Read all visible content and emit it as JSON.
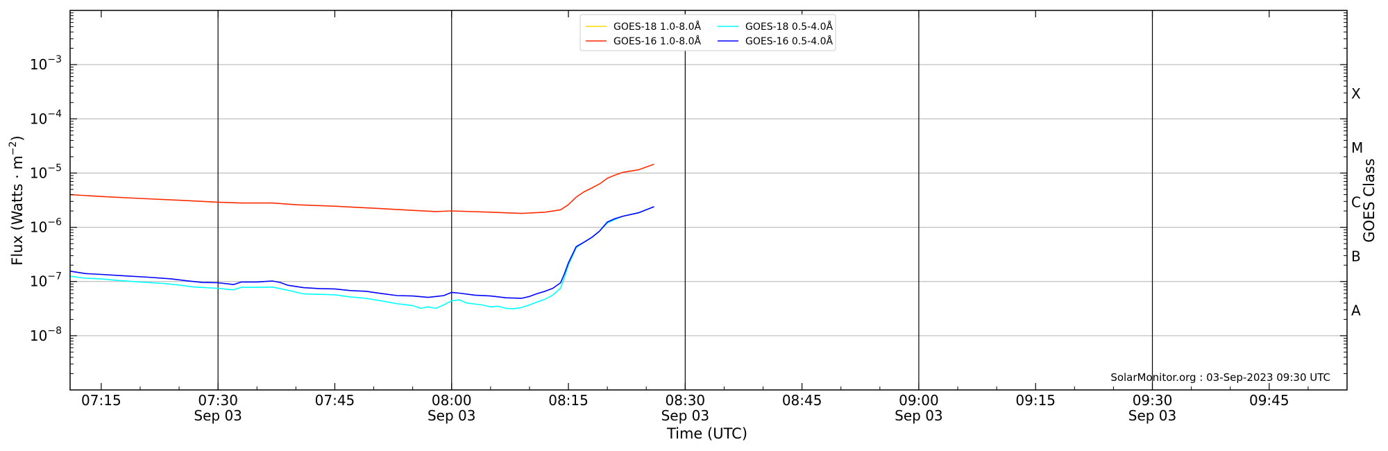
{
  "chart_data": {
    "type": "line",
    "title": "",
    "xlabel": "Time (UTC)",
    "ylabel": "Flux (Watts · m",
    "ylabel_exponent": "−2",
    "ylabel_close": ")",
    "right_label": "GOES Class",
    "y_scale": "log",
    "xlim": [
      "07:11",
      "09:55"
    ],
    "ylim": [
      1e-09,
      0.01
    ],
    "grid": "horizontal",
    "legend_placement": "top-center",
    "y_ticks": [
      {
        "value": 1e-08,
        "base": "10",
        "exp": "−8"
      },
      {
        "value": 1e-07,
        "base": "10",
        "exp": "−7"
      },
      {
        "value": 1e-06,
        "base": "10",
        "exp": "−6"
      },
      {
        "value": 1e-05,
        "base": "10",
        "exp": "−5"
      },
      {
        "value": 0.0001,
        "base": "10",
        "exp": "−4"
      },
      {
        "value": 0.001,
        "base": "10",
        "exp": "−3"
      }
    ],
    "x_ticks": [
      {
        "time": "07:15",
        "label": "07:15",
        "date": ""
      },
      {
        "time": "07:30",
        "label": "07:30",
        "date": "Sep 03"
      },
      {
        "time": "07:45",
        "label": "07:45",
        "date": ""
      },
      {
        "time": "08:00",
        "label": "08:00",
        "date": "Sep 03"
      },
      {
        "time": "08:15",
        "label": "08:15",
        "date": ""
      },
      {
        "time": "08:30",
        "label": "08:30",
        "date": "Sep 03"
      },
      {
        "time": "08:45",
        "label": "08:45",
        "date": ""
      },
      {
        "time": "09:00",
        "label": "09:00",
        "date": "Sep 03"
      },
      {
        "time": "09:15",
        "label": "09:15",
        "date": ""
      },
      {
        "time": "09:30",
        "label": "09:30",
        "date": "Sep 03"
      },
      {
        "time": "09:45",
        "label": "09:45",
        "date": ""
      }
    ],
    "vertical_lines": [
      "07:30",
      "08:00",
      "08:30",
      "09:00",
      "09:30"
    ],
    "class_labels": [
      {
        "label": "X",
        "value": 0.0003
      },
      {
        "label": "M",
        "value": 3e-05
      },
      {
        "label": "C",
        "value": 3e-06
      },
      {
        "label": "B",
        "value": 3e-07
      },
      {
        "label": "A",
        "value": 3e-08
      }
    ],
    "series": [
      {
        "name": "GOES-18 1.0-8.0Å",
        "color": "#ffd700",
        "points": []
      },
      {
        "name": "GOES-16 1.0-8.0Å",
        "color": "#ff2a00",
        "points": [
          [
            "07:11",
            4e-06
          ],
          [
            "07:15",
            3.7e-06
          ],
          [
            "07:20",
            3.4e-06
          ],
          [
            "07:25",
            3.15e-06
          ],
          [
            "07:30",
            2.9e-06
          ],
          [
            "07:33",
            2.8e-06
          ],
          [
            "07:37",
            2.8e-06
          ],
          [
            "07:40",
            2.6e-06
          ],
          [
            "07:45",
            2.45e-06
          ],
          [
            "07:50",
            2.25e-06
          ],
          [
            "07:55",
            2.05e-06
          ],
          [
            "07:58",
            1.95e-06
          ],
          [
            "08:00",
            2e-06
          ],
          [
            "08:05",
            1.9e-06
          ],
          [
            "08:09",
            1.8e-06
          ],
          [
            "08:12",
            1.9e-06
          ],
          [
            "08:14",
            2.1e-06
          ],
          [
            "08:15",
            2.6e-06
          ],
          [
            "08:16",
            3.6e-06
          ],
          [
            "08:17",
            4.5e-06
          ],
          [
            "08:18",
            5.3e-06
          ],
          [
            "08:19",
            6.3e-06
          ],
          [
            "08:20",
            8e-06
          ],
          [
            "08:21",
            9.2e-06
          ],
          [
            "08:22",
            1.03e-05
          ],
          [
            "08:24",
            1.15e-05
          ],
          [
            "08:26",
            1.45e-05
          ]
        ]
      },
      {
        "name": "GOES-18 0.5-4.0Å",
        "color": "#00ffff",
        "points": [
          [
            "07:11",
            1.25e-07
          ],
          [
            "07:13",
            1.15e-07
          ],
          [
            "07:15",
            1.12e-07
          ],
          [
            "07:17",
            1.05e-07
          ],
          [
            "07:20",
            9.8e-08
          ],
          [
            "07:23",
            9.2e-08
          ],
          [
            "07:25",
            8.6e-08
          ],
          [
            "07:27",
            7.9e-08
          ],
          [
            "07:30",
            7.5e-08
          ],
          [
            "07:32",
            7e-08
          ],
          [
            "07:33",
            7.8e-08
          ],
          [
            "07:35",
            7.8e-08
          ],
          [
            "07:37",
            7.9e-08
          ],
          [
            "07:39",
            6.9e-08
          ],
          [
            "07:41",
            5.9e-08
          ],
          [
            "07:43",
            5.8e-08
          ],
          [
            "07:45",
            5.7e-08
          ],
          [
            "07:47",
            5.2e-08
          ],
          [
            "07:49",
            4.9e-08
          ],
          [
            "07:51",
            4.4e-08
          ],
          [
            "07:53",
            3.9e-08
          ],
          [
            "07:55",
            3.6e-08
          ],
          [
            "07:56",
            3.2e-08
          ],
          [
            "07:57",
            3.4e-08
          ],
          [
            "07:58",
            3.2e-08
          ],
          [
            "07:59",
            3.7e-08
          ],
          [
            "08:00",
            4.4e-08
          ],
          [
            "08:01",
            4.6e-08
          ],
          [
            "08:02",
            4e-08
          ],
          [
            "08:04",
            3.7e-08
          ],
          [
            "08:05",
            3.4e-08
          ],
          [
            "08:06",
            3.5e-08
          ],
          [
            "08:07",
            3.2e-08
          ],
          [
            "08:08",
            3.15e-08
          ],
          [
            "08:09",
            3.3e-08
          ],
          [
            "08:10",
            3.7e-08
          ],
          [
            "08:11",
            4.2e-08
          ],
          [
            "08:12",
            4.7e-08
          ],
          [
            "08:13",
            5.6e-08
          ],
          [
            "08:14",
            7.5e-08
          ],
          [
            "08:14.5",
            1.2e-07
          ],
          [
            "08:15",
            2e-07
          ],
          [
            "08:16",
            4.2e-07
          ],
          [
            "08:17",
            5.3e-07
          ],
          [
            "08:18",
            6.5e-07
          ],
          [
            "08:19",
            8.5e-07
          ],
          [
            "08:20",
            1.2e-06
          ],
          [
            "08:21",
            1.4e-06
          ],
          [
            "08:22",
            1.6e-06
          ],
          [
            "08:24",
            1.85e-06
          ],
          [
            "08:26",
            2.4e-06
          ]
        ]
      },
      {
        "name": "GOES-16 0.5-4.0Å",
        "color": "#0000ff",
        "points": [
          [
            "07:11",
            1.55e-07
          ],
          [
            "07:13",
            1.4e-07
          ],
          [
            "07:15",
            1.35e-07
          ],
          [
            "07:18",
            1.27e-07
          ],
          [
            "07:21",
            1.2e-07
          ],
          [
            "07:24",
            1.12e-07
          ],
          [
            "07:26",
            1.03e-07
          ],
          [
            "07:28",
            9.6e-08
          ],
          [
            "07:30",
            9.5e-08
          ],
          [
            "07:32",
            8.8e-08
          ],
          [
            "07:33",
            9.8e-08
          ],
          [
            "07:35",
            9.8e-08
          ],
          [
            "07:37",
            1.02e-07
          ],
          [
            "07:38",
            9.6e-08
          ],
          [
            "07:39",
            8.5e-08
          ],
          [
            "07:41",
            7.7e-08
          ],
          [
            "07:43",
            7.4e-08
          ],
          [
            "07:45",
            7.3e-08
          ],
          [
            "07:47",
            6.8e-08
          ],
          [
            "07:49",
            6.6e-08
          ],
          [
            "07:51",
            6e-08
          ],
          [
            "07:53",
            5.5e-08
          ],
          [
            "07:55",
            5.4e-08
          ],
          [
            "07:57",
            5.1e-08
          ],
          [
            "07:59",
            5.5e-08
          ],
          [
            "08:00",
            6.3e-08
          ],
          [
            "08:01",
            6.1e-08
          ],
          [
            "08:03",
            5.6e-08
          ],
          [
            "08:05",
            5.4e-08
          ],
          [
            "08:07",
            5e-08
          ],
          [
            "08:09",
            4.9e-08
          ],
          [
            "08:10",
            5.3e-08
          ],
          [
            "08:11",
            6e-08
          ],
          [
            "08:12",
            6.6e-08
          ],
          [
            "08:13",
            7.5e-08
          ],
          [
            "08:14",
            9.5e-08
          ],
          [
            "08:14.5",
            1.4e-07
          ],
          [
            "08:15",
            2.2e-07
          ],
          [
            "08:16",
            4.4e-07
          ],
          [
            "08:17",
            5.3e-07
          ],
          [
            "08:18",
            6.5e-07
          ],
          [
            "08:19",
            8.5e-07
          ],
          [
            "08:20",
            1.25e-06
          ],
          [
            "08:21",
            1.45e-06
          ],
          [
            "08:22",
            1.6e-06
          ],
          [
            "08:24",
            1.85e-06
          ],
          [
            "08:26",
            2.4e-06
          ]
        ]
      }
    ],
    "credit": "SolarMonitor.org : 03-Sep-2023 09:30 UTC"
  }
}
